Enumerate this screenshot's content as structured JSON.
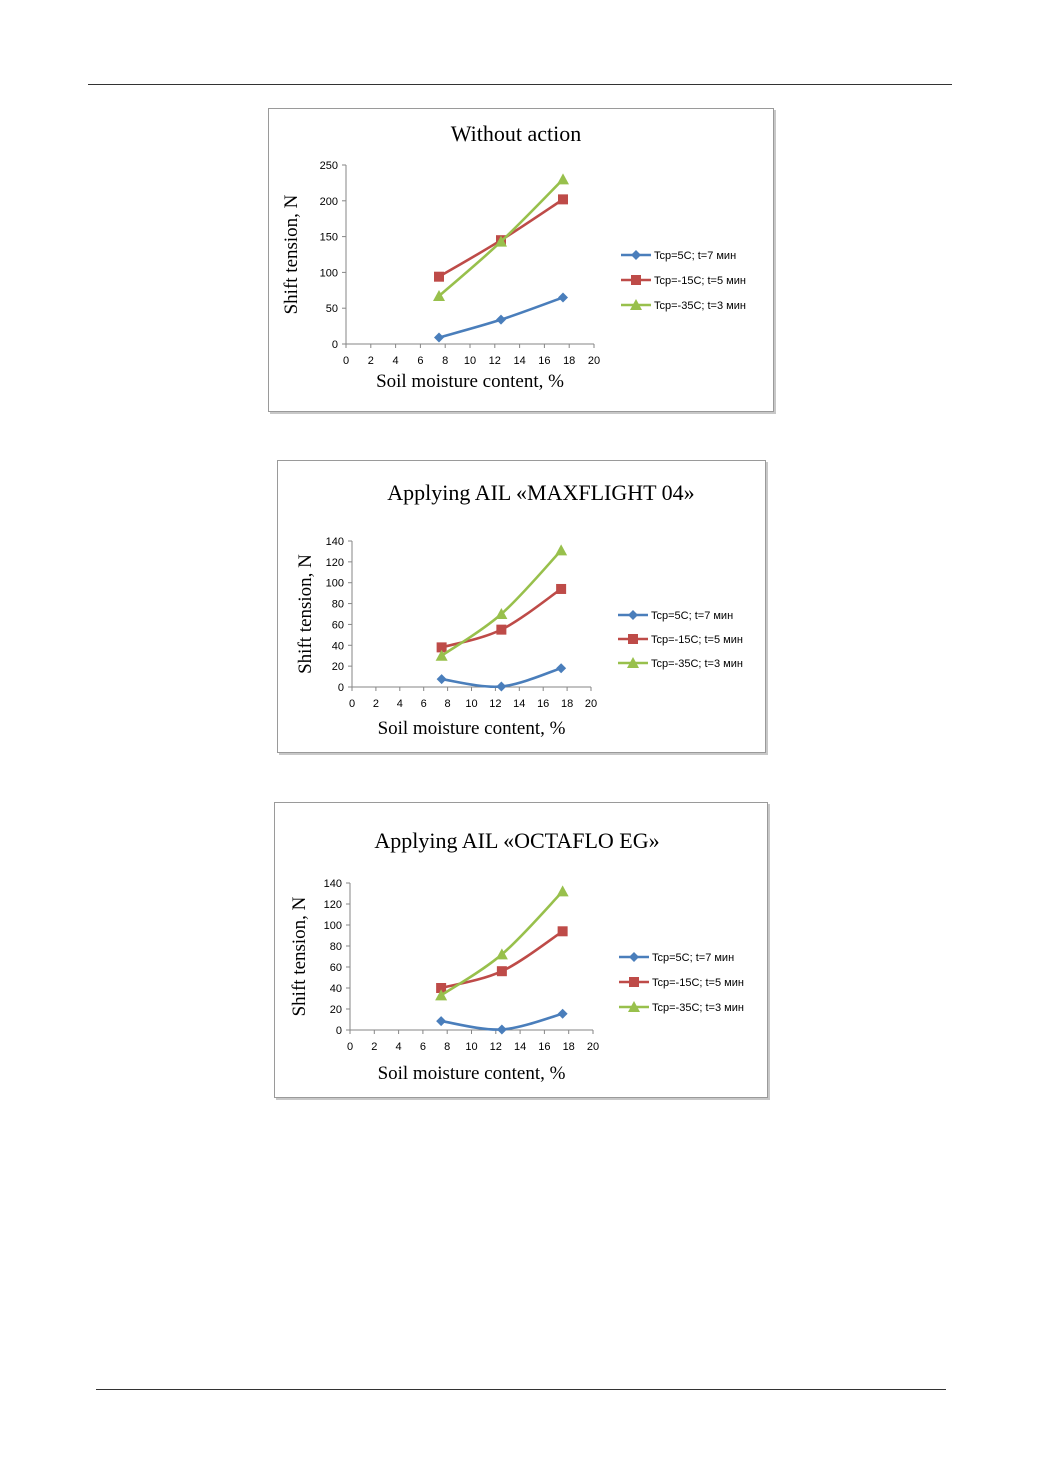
{
  "page": {
    "background": "#ffffff"
  },
  "colors": {
    "blue": "#4a7ebb",
    "red": "#be4b48",
    "green": "#98c04c"
  },
  "chart_data": [
    {
      "type": "line",
      "title": "Without action",
      "xlabel": "Soil moisture content, %",
      "ylabel": "Shift tension, N",
      "xlim": [
        0,
        20
      ],
      "xticks": [
        "0",
        "2",
        "4",
        "6",
        "8",
        "10",
        "12",
        "14",
        "16",
        "18",
        "20"
      ],
      "ylim": [
        0,
        250
      ],
      "yticks": [
        "0",
        "50",
        "100",
        "150",
        "200",
        "250"
      ],
      "grid": false,
      "legend": "right",
      "series": [
        {
          "name": "Tcp=5C; t=7 мин",
          "color": "#4a7ebb",
          "marker": "diamond",
          "x": [
            7.5,
            12.5,
            17.5
          ],
          "y": [
            9,
            34,
            65
          ]
        },
        {
          "name": "Tcp=-15C; t=5 мин",
          "color": "#be4b48",
          "marker": "square",
          "x": [
            7.5,
            12.5,
            17.5
          ],
          "y": [
            94,
            145,
            202
          ]
        },
        {
          "name": "Tcp=-35C; t=3 мин",
          "color": "#98c04c",
          "marker": "triangle",
          "x": [
            7.5,
            12.5,
            17.5
          ],
          "y": [
            67,
            143,
            230
          ]
        }
      ]
    },
    {
      "type": "line",
      "title": "Applying AIL «MAXFLIGHT 04»",
      "xlabel": "Soil moisture content, %",
      "ylabel": "Shift tension, N",
      "xlim": [
        0,
        20
      ],
      "xticks": [
        "0",
        "2",
        "4",
        "6",
        "8",
        "10",
        "12",
        "14",
        "16",
        "18",
        "20"
      ],
      "ylim": [
        0,
        140
      ],
      "yticks": [
        "0",
        "20",
        "40",
        "60",
        "80",
        "100",
        "120",
        "140"
      ],
      "grid": false,
      "legend": "right",
      "series": [
        {
          "name": "Tcp=5C; t=7 мин",
          "color": "#4a7ebb",
          "marker": "diamond",
          "x": [
            7.5,
            12.5,
            17.5
          ],
          "y": [
            7.5,
            0.5,
            18
          ]
        },
        {
          "name": "Tcp=-15C; t=5 мин",
          "color": "#be4b48",
          "marker": "square",
          "x": [
            7.5,
            12.5,
            17.5
          ],
          "y": [
            38,
            55,
            94
          ]
        },
        {
          "name": "Tcp=-35C; t=3 мин",
          "color": "#98c04c",
          "marker": "triangle",
          "x": [
            7.5,
            12.5,
            17.5
          ],
          "y": [
            30,
            70,
            131
          ]
        }
      ]
    },
    {
      "type": "line",
      "title": "Applying AIL «OCTAFLO EG»",
      "xlabel": "Soil moisture content, %",
      "ylabel": "Shift tension, N",
      "xlim": [
        0,
        20
      ],
      "xticks": [
        "0",
        "2",
        "4",
        "6",
        "8",
        "10",
        "12",
        "14",
        "16",
        "18",
        "20"
      ],
      "ylim": [
        0,
        140
      ],
      "yticks": [
        "0",
        "20",
        "40",
        "60",
        "80",
        "100",
        "120",
        "140"
      ],
      "grid": false,
      "legend": "right",
      "series": [
        {
          "name": "Tcp=5C; t=7 мин",
          "color": "#4a7ebb",
          "marker": "diamond",
          "x": [
            7.5,
            12.5,
            17.5
          ],
          "y": [
            8.5,
            0.5,
            15.5
          ]
        },
        {
          "name": "Tcp=-15C; t=5 мин",
          "color": "#be4b48",
          "marker": "square",
          "x": [
            7.5,
            12.5,
            17.5
          ],
          "y": [
            40,
            56,
            94
          ]
        },
        {
          "name": "Tcp=-35C; t=3 мин",
          "color": "#98c04c",
          "marker": "triangle",
          "x": [
            7.5,
            12.5,
            17.5
          ],
          "y": [
            33,
            72,
            132
          ]
        }
      ]
    }
  ]
}
